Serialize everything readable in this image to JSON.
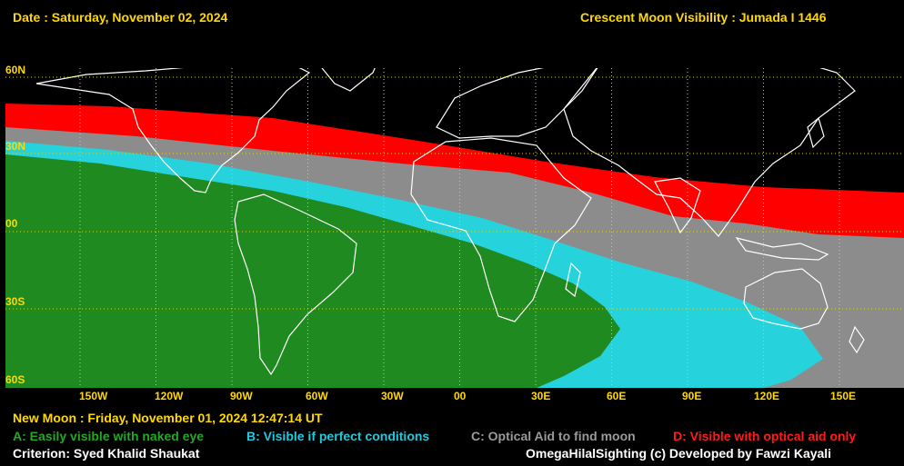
{
  "header": {
    "date": "Date : Saturday, November 02, 2024",
    "title": "Crescent Moon Visibility : Jumada I  1446"
  },
  "map": {
    "lat_labels": [
      "60N",
      "30N",
      "00",
      "30S",
      "60S"
    ],
    "lon_labels": [
      "150W",
      "120W",
      "90W",
      "60W",
      "30W",
      "00",
      "30E",
      "60E",
      "90E",
      "120E",
      "150E"
    ],
    "zone_colors": {
      "A": "#1f8a1f",
      "B": "#26d3dc",
      "C": "#8c8c8c",
      "D": "#ff0000"
    },
    "grid_color": "#d8d800"
  },
  "footer": {
    "new_moon": "New Moon : Friday, November 01, 2024  12:47:14  UT",
    "legend_a": "A: Easily visible with naked eye",
    "legend_b": "B: Visible if perfect conditions",
    "legend_c": "C: Optical Aid to find moon",
    "legend_d": "D: Visible with optical aid only",
    "criterion": "Criterion: Syed Khalid Shaukat",
    "credit": "OmegaHilalSighting  (c)  Developed by Fawzi Kayali"
  }
}
